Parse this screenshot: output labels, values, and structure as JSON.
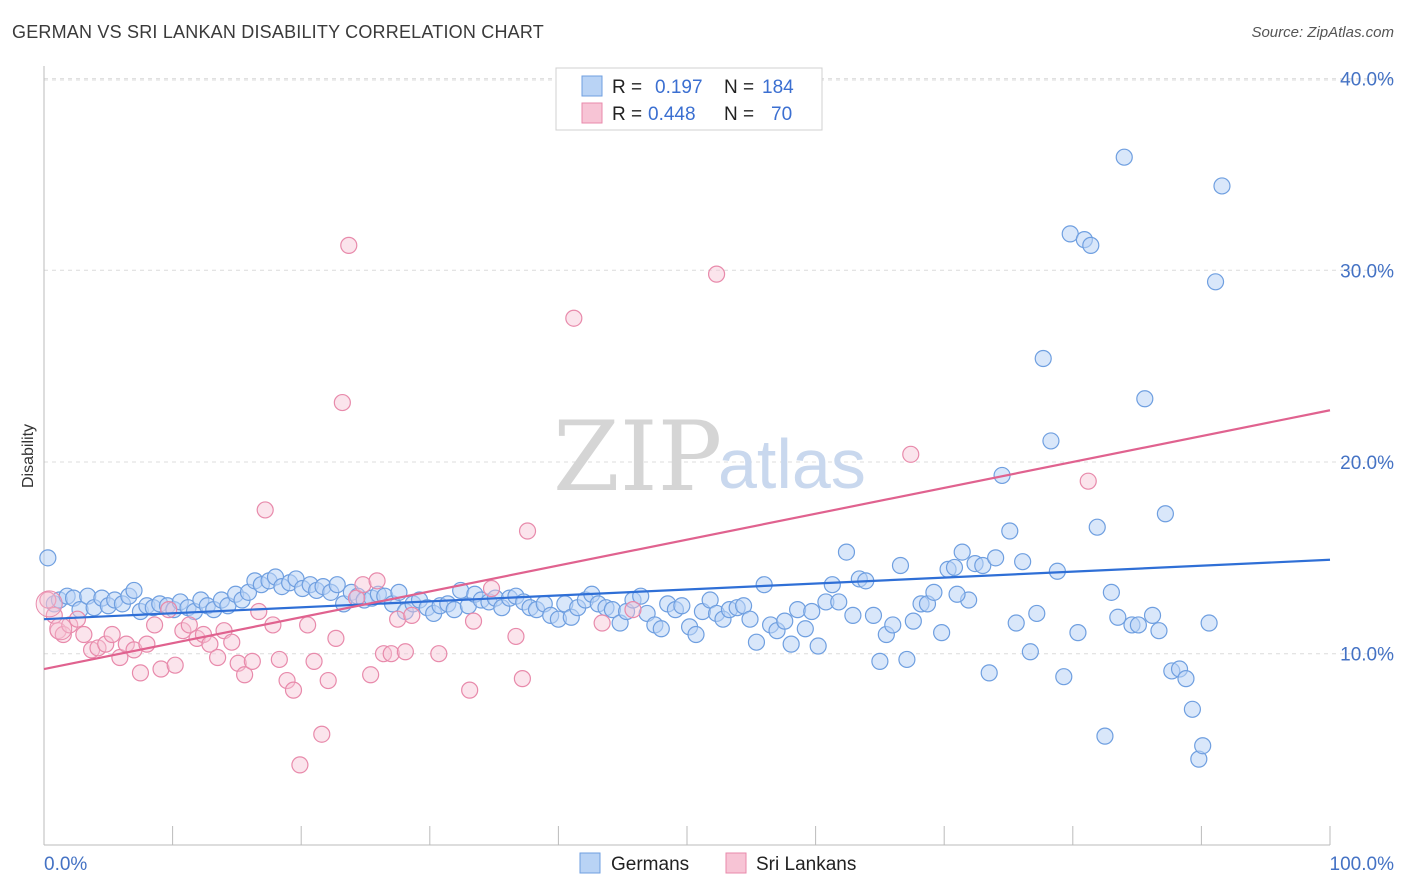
{
  "title": "GERMAN VS SRI LANKAN DISABILITY CORRELATION CHART",
  "source": "Source: ZipAtlas.com",
  "watermark": {
    "zip": "ZIP",
    "atlas": "atlas"
  },
  "colors": {
    "blue": "#4a86e8",
    "blue_fill": "#b9d3f5",
    "pink": "#e8709a",
    "pink_fill": "#f7c4d5",
    "axis_text": "#4472c4"
  },
  "legend_top": [
    {
      "r_label": "R =",
      "r_value": "0.197",
      "n_label": "N =",
      "n_value": "184"
    },
    {
      "r_label": "R =",
      "r_value": "0.448",
      "n_label": "N =",
      "n_value": "70"
    }
  ],
  "legend_bottom": [
    "Germans",
    "Sri Lankans"
  ],
  "chart_data": {
    "type": "scatter",
    "title": "GERMAN VS SRI LANKAN DISABILITY CORRELATION CHART",
    "xlabel": "",
    "ylabel": "Disability",
    "xlim": [
      0,
      100
    ],
    "ylim": [
      0,
      40
    ],
    "x_tick_labels": [
      "0.0%",
      "100.0%"
    ],
    "y_ticks": [
      10,
      20,
      30,
      40
    ],
    "y_tick_labels": [
      "10.0%",
      "20.0%",
      "30.0%",
      "40.0%"
    ],
    "grid": "horizontal dashed",
    "legend_placement": "top-center and bottom-center",
    "series": [
      {
        "name": "Germans",
        "r": 0.197,
        "n": 184,
        "trend": [
          [
            0,
            11.8
          ],
          [
            100,
            14.9
          ]
        ],
        "points": [
          [
            0.3,
            15
          ],
          [
            0.8,
            12.6
          ],
          [
            1.2,
            12.8
          ],
          [
            1.8,
            13
          ],
          [
            2.3,
            12.9
          ],
          [
            2.8,
            12.3
          ],
          [
            3.4,
            13
          ],
          [
            3.9,
            12.4
          ],
          [
            4.5,
            12.9
          ],
          [
            5,
            12.5
          ],
          [
            5.5,
            12.8
          ],
          [
            6.1,
            12.6
          ],
          [
            6.6,
            13
          ],
          [
            7,
            13.3
          ],
          [
            7.5,
            12.2
          ],
          [
            8,
            12.5
          ],
          [
            8.5,
            12.4
          ],
          [
            9,
            12.6
          ],
          [
            9.6,
            12.5
          ],
          [
            10.1,
            12.3
          ],
          [
            10.6,
            12.7
          ],
          [
            11.2,
            12.4
          ],
          [
            11.7,
            12.2
          ],
          [
            12.2,
            12.8
          ],
          [
            12.7,
            12.5
          ],
          [
            13.2,
            12.3
          ],
          [
            13.8,
            12.8
          ],
          [
            14.3,
            12.5
          ],
          [
            14.9,
            13.1
          ],
          [
            15.4,
            12.8
          ],
          [
            15.9,
            13.2
          ],
          [
            16.4,
            13.8
          ],
          [
            16.9,
            13.6
          ],
          [
            17.5,
            13.8
          ],
          [
            18,
            14
          ],
          [
            18.5,
            13.5
          ],
          [
            19.1,
            13.7
          ],
          [
            19.6,
            13.9
          ],
          [
            20.1,
            13.4
          ],
          [
            20.7,
            13.6
          ],
          [
            21.2,
            13.3
          ],
          [
            21.7,
            13.5
          ],
          [
            22.3,
            13.2
          ],
          [
            22.8,
            13.6
          ],
          [
            23.3,
            12.6
          ],
          [
            23.9,
            13.2
          ],
          [
            24.4,
            13
          ],
          [
            24.9,
            12.8
          ],
          [
            25.5,
            12.9
          ],
          [
            26,
            13.1
          ],
          [
            26.5,
            13
          ],
          [
            27.1,
            12.6
          ],
          [
            27.6,
            13.2
          ],
          [
            28.1,
            12.2
          ],
          [
            28.7,
            12.6
          ],
          [
            29.2,
            12.8
          ],
          [
            29.8,
            12.4
          ],
          [
            30.3,
            12.1
          ],
          [
            30.8,
            12.5
          ],
          [
            31.4,
            12.6
          ],
          [
            31.9,
            12.3
          ],
          [
            32.4,
            13.3
          ],
          [
            33,
            12.5
          ],
          [
            33.5,
            13.1
          ],
          [
            34,
            12.8
          ],
          [
            34.6,
            12.7
          ],
          [
            35.1,
            12.9
          ],
          [
            35.6,
            12.4
          ],
          [
            36.2,
            12.9
          ],
          [
            36.7,
            13
          ],
          [
            37.3,
            12.7
          ],
          [
            37.8,
            12.4
          ],
          [
            38.3,
            12.3
          ],
          [
            38.9,
            12.6
          ],
          [
            39.4,
            12
          ],
          [
            40,
            11.8
          ],
          [
            40.5,
            12.6
          ],
          [
            41,
            11.9
          ],
          [
            41.5,
            12.4
          ],
          [
            42.1,
            12.8
          ],
          [
            42.6,
            13.1
          ],
          [
            43.1,
            12.6
          ],
          [
            43.7,
            12.4
          ],
          [
            44.2,
            12.3
          ],
          [
            44.8,
            11.6
          ],
          [
            45.3,
            12.2
          ],
          [
            45.8,
            12.8
          ],
          [
            46.4,
            13
          ],
          [
            46.9,
            12.1
          ],
          [
            47.5,
            11.5
          ],
          [
            48,
            11.3
          ],
          [
            48.5,
            12.6
          ],
          [
            49.1,
            12.3
          ],
          [
            49.6,
            12.5
          ],
          [
            50.2,
            11.4
          ],
          [
            50.7,
            11
          ],
          [
            51.2,
            12.2
          ],
          [
            51.8,
            12.8
          ],
          [
            52.3,
            12.1
          ],
          [
            52.8,
            11.8
          ],
          [
            53.3,
            12.3
          ],
          [
            53.9,
            12.4
          ],
          [
            54.4,
            12.5
          ],
          [
            54.9,
            11.8
          ],
          [
            55.4,
            10.6
          ],
          [
            56,
            13.6
          ],
          [
            56.5,
            11.5
          ],
          [
            57,
            11.2
          ],
          [
            57.6,
            11.7
          ],
          [
            58.1,
            10.5
          ],
          [
            58.6,
            12.3
          ],
          [
            59.2,
            11.3
          ],
          [
            59.7,
            12.2
          ],
          [
            60.2,
            10.4
          ],
          [
            60.8,
            12.7
          ],
          [
            61.3,
            13.6
          ],
          [
            61.8,
            12.7
          ],
          [
            62.4,
            15.3
          ],
          [
            62.9,
            12
          ],
          [
            63.4,
            13.9
          ],
          [
            63.9,
            13.8
          ],
          [
            64.5,
            12
          ],
          [
            65,
            9.6
          ],
          [
            65.5,
            11
          ],
          [
            66,
            11.5
          ],
          [
            66.6,
            14.6
          ],
          [
            67.1,
            9.7
          ],
          [
            67.6,
            11.7
          ],
          [
            68.2,
            12.6
          ],
          [
            68.7,
            12.6
          ],
          [
            69.2,
            13.2
          ],
          [
            69.8,
            11.1
          ],
          [
            70.3,
            14.4
          ],
          [
            70.8,
            14.5
          ],
          [
            71.4,
            15.3
          ],
          [
            71.9,
            12.8
          ],
          [
            72.4,
            14.7
          ],
          [
            73,
            14.6
          ],
          [
            73.5,
            9
          ],
          [
            74,
            15
          ],
          [
            74.5,
            19.3
          ],
          [
            75.1,
            16.4
          ],
          [
            75.6,
            11.6
          ],
          [
            76.1,
            14.8
          ],
          [
            76.7,
            10.1
          ],
          [
            77.2,
            12.1
          ],
          [
            77.7,
            25.4
          ],
          [
            78.3,
            21.1
          ],
          [
            78.8,
            14.3
          ],
          [
            79.3,
            8.8
          ],
          [
            79.8,
            31.9
          ],
          [
            80.4,
            11.1
          ],
          [
            80.9,
            31.6
          ],
          [
            81.4,
            31.3
          ],
          [
            81.9,
            16.6
          ],
          [
            82.5,
            5.7
          ],
          [
            83,
            13.2
          ],
          [
            83.5,
            11.9
          ],
          [
            84,
            35.9
          ],
          [
            84.6,
            11.5
          ],
          [
            85.1,
            11.5
          ],
          [
            85.6,
            23.3
          ],
          [
            86.2,
            12
          ],
          [
            86.7,
            11.2
          ],
          [
            87.2,
            17.3
          ],
          [
            87.7,
            9.1
          ],
          [
            88.3,
            9.2
          ],
          [
            88.8,
            8.7
          ],
          [
            89.3,
            7.1
          ],
          [
            89.8,
            4.5
          ],
          [
            90.1,
            5.2
          ],
          [
            90.6,
            11.6
          ],
          [
            91.1,
            29.4
          ],
          [
            91.6,
            34.4
          ],
          [
            71,
            13.1
          ]
        ]
      },
      {
        "name": "Sri Lankans",
        "r": 0.448,
        "n": 70,
        "trend": [
          [
            0,
            9.2
          ],
          [
            100,
            22.7
          ]
        ],
        "points": [
          [
            0.3,
            12.8
          ],
          [
            0.8,
            12
          ],
          [
            1.1,
            11.2
          ],
          [
            1.5,
            11
          ],
          [
            2,
            11.5
          ],
          [
            2.6,
            11.8
          ],
          [
            3.1,
            11
          ],
          [
            3.7,
            10.2
          ],
          [
            4.2,
            10.3
          ],
          [
            4.8,
            10.5
          ],
          [
            5.3,
            11
          ],
          [
            5.9,
            9.8
          ],
          [
            6.4,
            10.5
          ],
          [
            7,
            10.2
          ],
          [
            7.5,
            9
          ],
          [
            8,
            10.5
          ],
          [
            8.6,
            11.5
          ],
          [
            9.1,
            9.2
          ],
          [
            9.7,
            12.3
          ],
          [
            10.2,
            9.4
          ],
          [
            10.8,
            11.2
          ],
          [
            11.3,
            11.5
          ],
          [
            11.9,
            10.8
          ],
          [
            12.4,
            11
          ],
          [
            12.9,
            10.5
          ],
          [
            13.5,
            9.8
          ],
          [
            14,
            11.2
          ],
          [
            14.6,
            10.6
          ],
          [
            15.1,
            9.5
          ],
          [
            15.6,
            8.9
          ],
          [
            16.2,
            9.6
          ],
          [
            16.7,
            12.2
          ],
          [
            17.2,
            17.5
          ],
          [
            17.8,
            11.5
          ],
          [
            18.3,
            9.7
          ],
          [
            18.9,
            8.6
          ],
          [
            19.4,
            8.1
          ],
          [
            19.9,
            4.2
          ],
          [
            20.5,
            11.5
          ],
          [
            21,
            9.6
          ],
          [
            21.6,
            5.8
          ],
          [
            22.1,
            8.6
          ],
          [
            22.7,
            10.8
          ],
          [
            23.2,
            23.1
          ],
          [
            23.7,
            31.3
          ],
          [
            24.3,
            12.9
          ],
          [
            24.8,
            13.6
          ],
          [
            25.4,
            8.9
          ],
          [
            25.9,
            13.8
          ],
          [
            26.4,
            10
          ],
          [
            27,
            10
          ],
          [
            27.5,
            11.8
          ],
          [
            28.1,
            10.1
          ],
          [
            28.6,
            12
          ],
          [
            30.7,
            10
          ],
          [
            33.1,
            8.1
          ],
          [
            33.4,
            11.7
          ],
          [
            34.8,
            13.4
          ],
          [
            36.7,
            10.9
          ],
          [
            37.2,
            8.7
          ],
          [
            37.6,
            16.4
          ],
          [
            41.2,
            27.5
          ],
          [
            43.4,
            11.6
          ],
          [
            45.8,
            12.3
          ],
          [
            52.3,
            29.8
          ],
          [
            67.4,
            20.4
          ],
          [
            81.2,
            19
          ]
        ]
      }
    ]
  }
}
